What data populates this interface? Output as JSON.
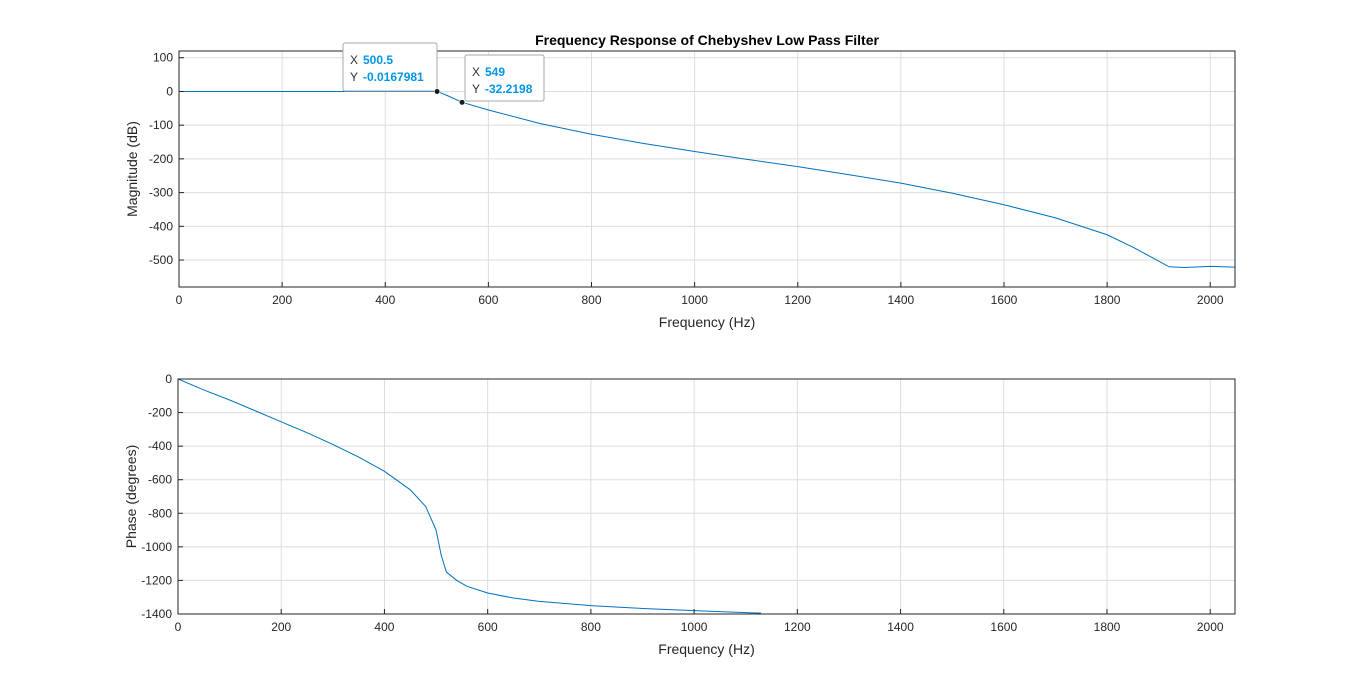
{
  "figure": {
    "title": "Frequency Response of Chebyshev Low Pass Filter"
  },
  "colors": {
    "line": "#0072BD",
    "datatip_value": "#0096E6",
    "grid": "#dddddd",
    "axis": "#262626"
  },
  "chart_data": [
    {
      "type": "line",
      "title": "Frequency Response of Chebyshev Low Pass Filter",
      "xlabel": "Frequency (Hz)",
      "ylabel": "Magnitude (dB)",
      "xlim": [
        0,
        2048
      ],
      "ylim": [
        -580,
        120
      ],
      "grid": true,
      "xticks": [
        0,
        200,
        400,
        600,
        800,
        1000,
        1200,
        1400,
        1600,
        1800,
        2000
      ],
      "yticks": [
        100,
        0,
        -100,
        -200,
        -300,
        -400,
        -500
      ],
      "series": [
        {
          "x": [
            0,
            100,
            200,
            300,
            400,
            480,
            500.5,
            520,
            549,
            600,
            700,
            800,
            900,
            1000,
            1100,
            1200,
            1300,
            1400,
            1500,
            1600,
            1700,
            1800,
            1850,
            1900,
            1920,
            1950,
            2000,
            2048
          ],
          "y": [
            0,
            0,
            0,
            0,
            0,
            0,
            -0.0168,
            -12,
            -32.2,
            -55,
            -95,
            -127,
            -154,
            -178,
            -201,
            -223,
            -247,
            -272,
            -302,
            -336,
            -375,
            -425,
            -462,
            -503,
            -520,
            -522,
            -519,
            -521
          ]
        }
      ],
      "datatips": [
        {
          "x_key": "X",
          "x_value": "500.5",
          "y_key": "Y",
          "y_value": "-0.0167981",
          "x": 500.5,
          "y": -0.0167981
        },
        {
          "x_key": "X",
          "x_value": "549",
          "y_key": "Y",
          "y_value": "-32.2198",
          "x": 549,
          "y": -32.2198
        }
      ]
    },
    {
      "type": "line",
      "title": "",
      "xlabel": "Frequency (Hz)",
      "ylabel": "Phase (degrees)",
      "xlim": [
        0,
        2048
      ],
      "ylim": [
        -1400,
        0
      ],
      "grid": true,
      "xticks": [
        0,
        200,
        400,
        600,
        800,
        1000,
        1200,
        1400,
        1600,
        1800,
        2000
      ],
      "yticks": [
        0,
        -200,
        -400,
        -600,
        -800,
        -1000,
        -1200,
        -1400
      ],
      "series": [
        {
          "x": [
            0,
            50,
            100,
            150,
            200,
            250,
            300,
            350,
            400,
            450,
            480,
            500,
            510,
            520,
            540,
            560,
            600,
            650,
            700,
            800,
            900,
            1000,
            1100,
            1130
          ],
          "y": [
            0,
            -65,
            -125,
            -190,
            -255,
            -320,
            -390,
            -465,
            -550,
            -660,
            -760,
            -900,
            -1050,
            -1150,
            -1200,
            -1235,
            -1275,
            -1305,
            -1325,
            -1350,
            -1367,
            -1380,
            -1392,
            -1395
          ]
        }
      ]
    }
  ]
}
